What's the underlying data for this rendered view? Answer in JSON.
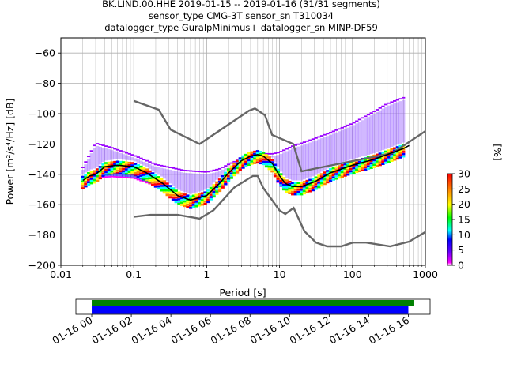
{
  "title": {
    "line1": "BK.LIND.00.HHE   2019-01-15 -- 2019-01-16  (31/31 segments)",
    "line2": "sensor_type CMG-3T sensor_sn T310034",
    "line3": "datalogger_type GuralpMinimus+ datalogger_sn MINP-DF59"
  },
  "chart_data": [
    {
      "type": "heatmap",
      "title": "BK.LIND.00.HHE   2019-01-15 -- 2019-01-16  (31/31 segments)",
      "xlabel": "Period [s]",
      "ylabel": "Power [m²/s⁴/Hz] [dB]",
      "xscale": "log",
      "xlim": [
        0.01,
        1000
      ],
      "ylim": [
        -200,
        -50
      ],
      "x_ticks": [
        0.01,
        0.1,
        1,
        10,
        100,
        1000
      ],
      "x_tick_labels": [
        "0.01",
        "0.1",
        "1",
        "10",
        "100",
        "1000"
      ],
      "y_ticks": [
        -200,
        -180,
        -160,
        -140,
        -120,
        -100,
        -80,
        -60
      ],
      "y_tick_labels": [
        "−200",
        "−180",
        "−160",
        "−140",
        "−120",
        "−100",
        "−80",
        "−60"
      ],
      "grid": true,
      "colorbar": {
        "label": "[%]",
        "min": 0,
        "max": 30,
        "ticks": [
          0,
          5,
          10,
          15,
          20,
          25,
          30
        ],
        "tick_labels": [
          "0",
          "5",
          "10",
          "15",
          "20",
          "25",
          "30"
        ]
      },
      "series": [
        {
          "kind": "noise_model_high",
          "color": "#666666",
          "x": [
            0.1,
            0.22,
            0.32,
            0.8,
            3.8,
            4.6,
            6.3,
            7.9,
            15.4,
            20,
            354,
            1000
          ],
          "y": [
            -91.5,
            -97.4,
            -110.5,
            -120,
            -98,
            -96.5,
            -101,
            -114,
            -120,
            -138,
            -126,
            -111.5
          ]
        },
        {
          "kind": "noise_model_low",
          "color": "#666666",
          "x": [
            0.1,
            0.17,
            0.4,
            0.8,
            1.24,
            2.4,
            4.3,
            5.0,
            6.0,
            10,
            12,
            15.6,
            21.9,
            31.6,
            45,
            70,
            101,
            154,
            328,
            600,
            1000
          ],
          "y": [
            -168,
            -166.7,
            -166.7,
            -169.2,
            -163.7,
            -148.6,
            -141.1,
            -141.1,
            -149,
            -163.8,
            -166.2,
            -162.1,
            -177.5,
            -185,
            -187.5,
            -187.5,
            -185,
            -185,
            -187.5,
            -184.4,
            -178
          ]
        },
        {
          "kind": "mean",
          "color": "#000000",
          "x": [
            0.02,
            0.025,
            0.03,
            0.04,
            0.06,
            0.1,
            0.15,
            0.25,
            0.4,
            0.6,
            1,
            1.5,
            2,
            3,
            4,
            5,
            6,
            8,
            10,
            12,
            15,
            20,
            30,
            50,
            100,
            200,
            300,
            500,
            600
          ],
          "y": [
            -144,
            -141,
            -140,
            -135,
            -134,
            -135,
            -139,
            -146,
            -154,
            -157,
            -154,
            -146,
            -139,
            -131,
            -128,
            -127,
            -128,
            -133,
            -141,
            -146,
            -148,
            -148,
            -145,
            -139,
            -134,
            -130,
            -127,
            -123,
            -121
          ]
        },
        {
          "kind": "psd_spread_upper",
          "color": "#9900ff",
          "x": [
            0.02,
            0.03,
            0.05,
            0.1,
            0.2,
            0.5,
            1,
            1.5,
            2,
            3,
            5,
            8,
            10,
            15,
            20,
            30,
            50,
            100,
            200,
            300,
            500
          ],
          "y": [
            -135,
            -119,
            -122,
            -127,
            -133,
            -137,
            -138,
            -136,
            -133,
            -129,
            -126,
            -126,
            -125,
            -121,
            -119,
            -116,
            -112,
            -106,
            -98,
            -93,
            -89
          ]
        },
        {
          "kind": "psd_spread_lower",
          "color": "#ff00ff",
          "x": [
            0.02,
            0.03,
            0.05,
            0.1,
            0.2,
            0.4,
            0.6,
            1,
            1.5,
            2,
            3,
            5,
            8,
            10,
            15,
            20,
            30,
            50,
            100,
            200,
            500
          ],
          "y": [
            -146,
            -142,
            -141,
            -142,
            -147,
            -158,
            -160,
            -157,
            -150,
            -143,
            -135,
            -129,
            -136,
            -147,
            -151,
            -151,
            -148,
            -142,
            -137,
            -133,
            -125
          ]
        }
      ]
    },
    {
      "type": "bar",
      "title": "",
      "xlabel": "",
      "ylabel": "",
      "x_tick_labels": [
        "01-16 00",
        "01-16 02",
        "01-16 04",
        "01-16 06",
        "01-16 08",
        "01-16 10",
        "01-16 12",
        "01-16 14",
        "01-16 16"
      ],
      "x_tick_hours": [
        0,
        2,
        4,
        6,
        8,
        10,
        12,
        14,
        16
      ],
      "xlim_hours": [
        -0.8,
        17.1
      ],
      "series": [
        {
          "kind": "data_coverage",
          "color": "#008000",
          "start_hour": 0.0,
          "end_hour": 16.3
        },
        {
          "kind": "psd_coverage",
          "color": "#0000ff",
          "start_hour": 0.0,
          "end_hour": 16.0
        }
      ]
    }
  ]
}
